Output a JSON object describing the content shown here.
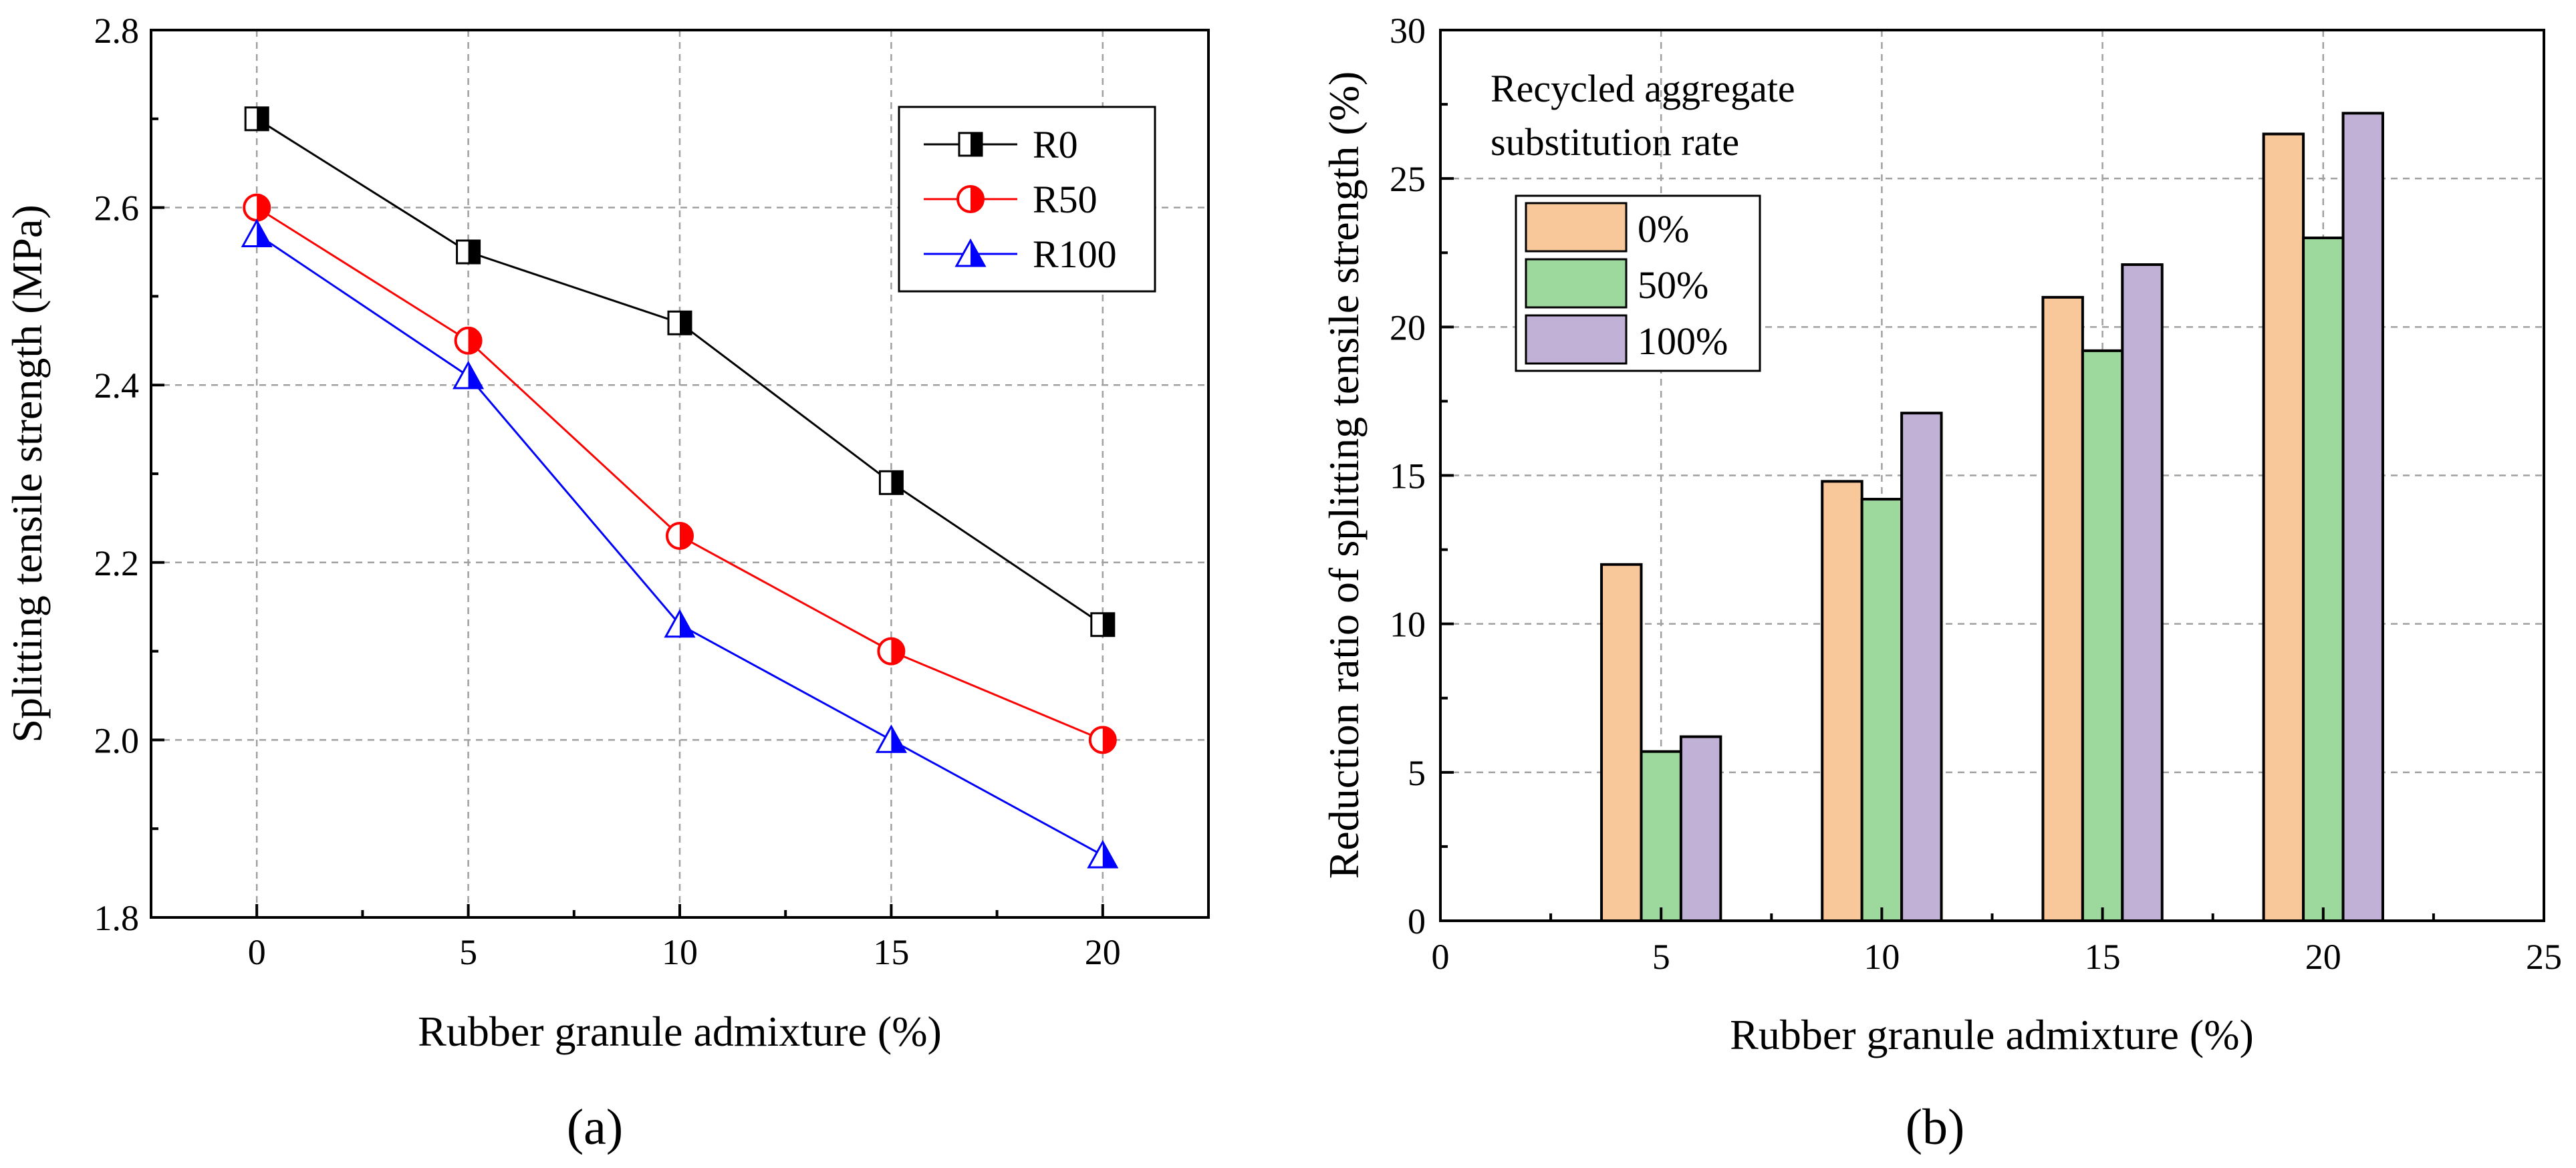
{
  "chart_data": [
    {
      "id": "a",
      "type": "line",
      "panel_label": "(a)",
      "xlabel": "Rubber granule admixture (%)",
      "ylabel": "Splitting tensile strength (MPa)",
      "x": [
        0,
        5,
        10,
        15,
        20
      ],
      "xlim": [
        -2.5,
        22.5
      ],
      "ylim": [
        1.8,
        2.8
      ],
      "xticks": [
        "0",
        "5",
        "10",
        "15",
        "20"
      ],
      "yticks": [
        "1.8",
        "2.0",
        "2.2",
        "2.4",
        "2.6",
        "2.8"
      ],
      "grid": true,
      "legend_position": "top-right",
      "series": [
        {
          "name": "R0",
          "values": [
            2.7,
            2.55,
            2.47,
            2.29,
            2.13
          ],
          "color": "#000000",
          "marker": "half-filled-square"
        },
        {
          "name": "R50",
          "values": [
            2.6,
            2.45,
            2.23,
            2.1,
            2.0
          ],
          "color": "#ff0000",
          "marker": "half-filled-circle"
        },
        {
          "name": "R100",
          "values": [
            2.57,
            2.41,
            2.13,
            2.0,
            1.87
          ],
          "color": "#0000ff",
          "marker": "half-filled-triangle"
        }
      ]
    },
    {
      "id": "b",
      "type": "bar",
      "panel_label": "(b)",
      "xlabel": "Rubber granule admixture (%)",
      "ylabel": "Reduction ratio of splitting tensile strength (%)",
      "categories": [
        5,
        10,
        15,
        20
      ],
      "xlim": [
        0,
        25
      ],
      "ylim": [
        0,
        30
      ],
      "xticks": [
        "0",
        "5",
        "10",
        "15",
        "20",
        "25"
      ],
      "yticks": [
        "0",
        "5",
        "10",
        "15",
        "20",
        "25",
        "30"
      ],
      "grid": true,
      "legend_title": "Recycled aggregate substitution rate",
      "legend_title_lines": [
        "Recycled aggregate",
        "substitution rate"
      ],
      "legend_position": "top-left",
      "series": [
        {
          "name": "0%",
          "values": [
            12.0,
            14.8,
            21.0,
            26.5
          ],
          "color": "#f9c89a"
        },
        {
          "name": "50%",
          "values": [
            5.7,
            14.2,
            19.2,
            23.0
          ],
          "color": "#9dd89d"
        },
        {
          "name": "100%",
          "values": [
            6.2,
            17.1,
            22.1,
            27.2
          ],
          "color": "#c1b1d6"
        }
      ]
    }
  ]
}
